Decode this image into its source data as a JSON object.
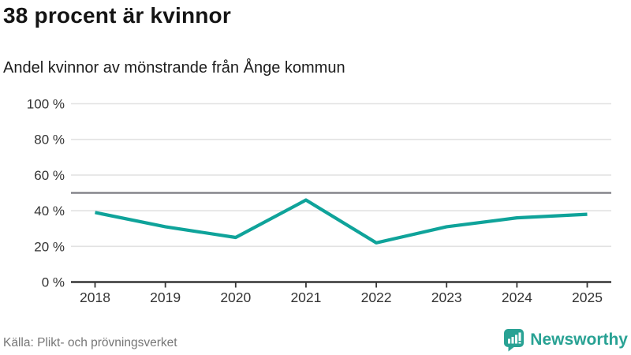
{
  "chart_data": {
    "type": "line",
    "title": "38 procent är kvinnor",
    "subtitle": "Andel kvinnor av mönstrande från Ånge kommun",
    "categories": [
      "2018",
      "2019",
      "2020",
      "2021",
      "2022",
      "2023",
      "2024",
      "2025"
    ],
    "values": [
      39,
      31,
      25,
      46,
      22,
      31,
      36,
      38
    ],
    "ylim": [
      0,
      100
    ],
    "yticks": [
      0,
      20,
      40,
      60,
      80,
      100
    ],
    "ytick_suffix": " %",
    "reference_line": 50,
    "grid": true,
    "legend": "none",
    "colors": {
      "line": "#0fa39a",
      "reference": "#85858b",
      "grid": "#e2e2e2",
      "axis": "#363636",
      "tick_label": "#333333"
    }
  },
  "footer": {
    "source": "Källa: Plikt- och prövningsverket",
    "brand_name": "Newsworthy",
    "brand_color": "#29a294",
    "logo_icon": "speech-bubble-bar-chart-icon"
  }
}
